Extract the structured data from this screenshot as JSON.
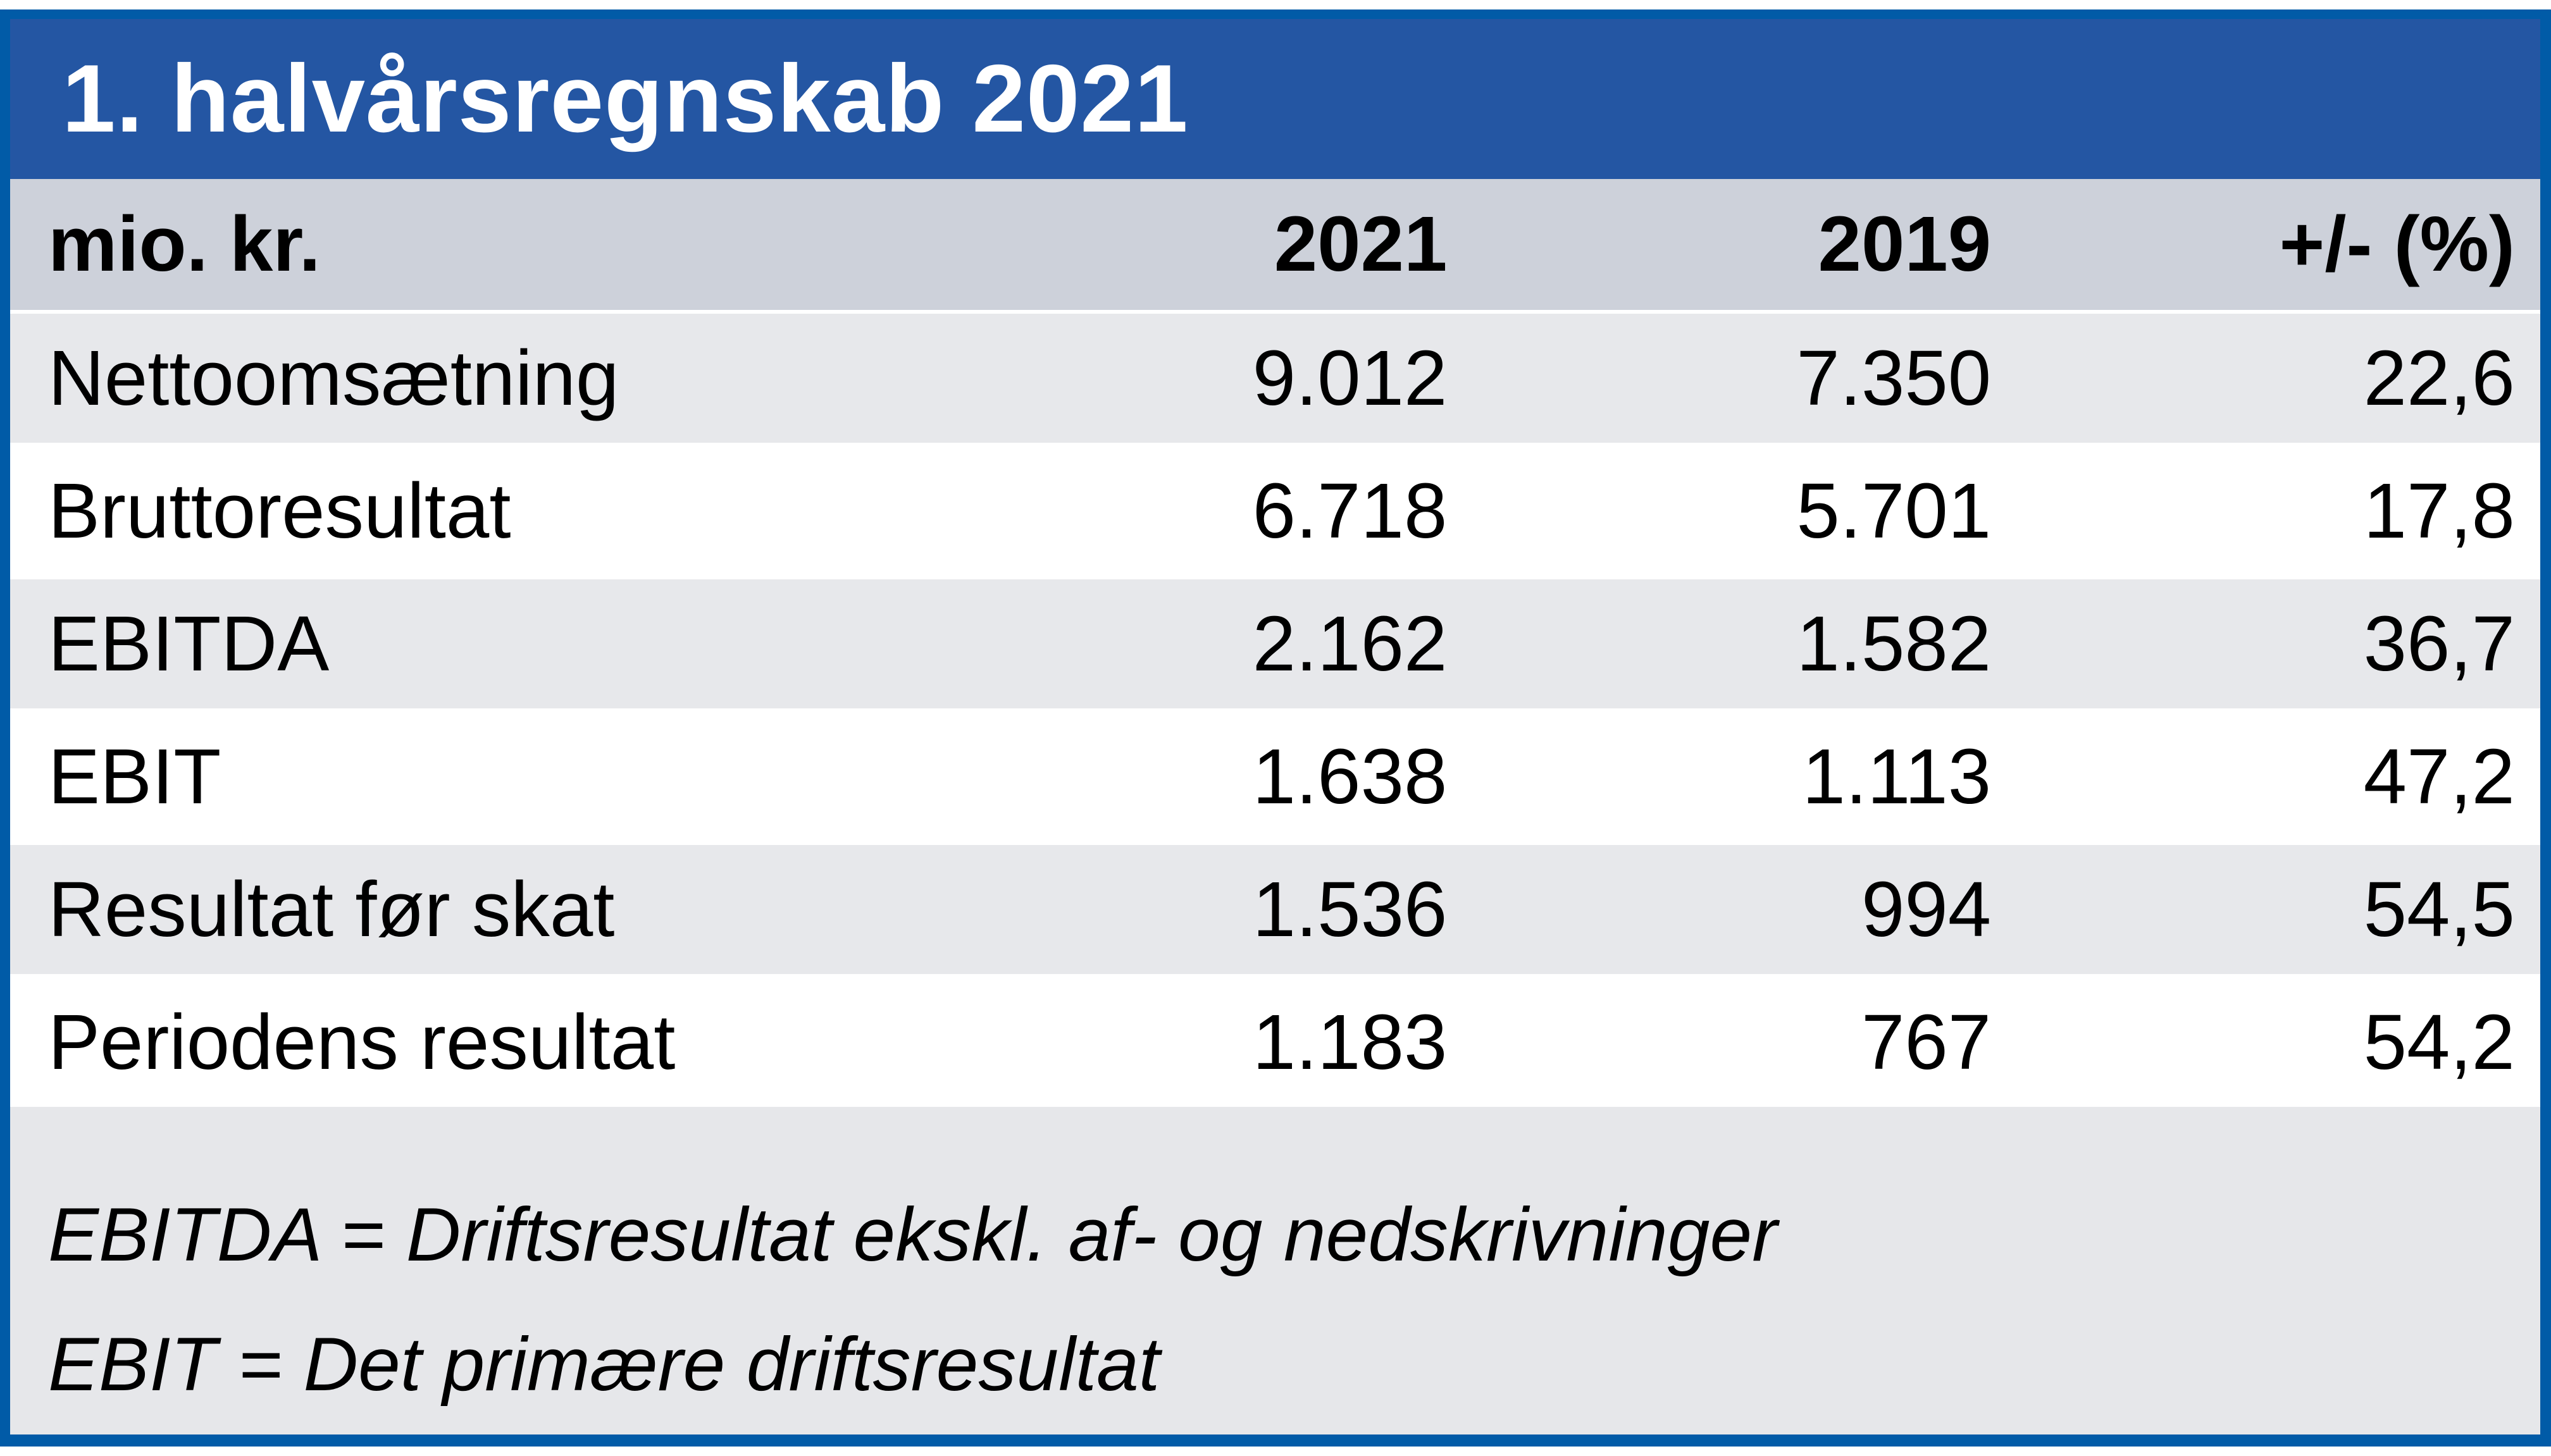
{
  "title": "1. halvårsregnskab 2021",
  "table": {
    "columns": [
      "mio. kr.",
      "2021",
      "2019",
      "+/- (%)"
    ],
    "rows": [
      [
        "Nettoomsætning",
        "9.012",
        "7.350",
        "22,6"
      ],
      [
        "Bruttoresultat",
        "6.718",
        "5.701",
        "17,8"
      ],
      [
        "EBITDA",
        "2.162",
        "1.582",
        "36,7"
      ],
      [
        "EBIT",
        "1.638",
        "1.113",
        "47,2"
      ],
      [
        "Resultat før skat",
        "1.536",
        "994",
        "54,5"
      ],
      [
        "Periodens resultat",
        "1.183",
        "767",
        "54,2"
      ]
    ]
  },
  "footnotes": [
    "EBITDA = Driftsresultat ekskl. af- og nedskrivninger",
    "EBIT = Det primære driftsresultat"
  ],
  "colors": {
    "frame_blue": "#015BA7",
    "title_blue": "#2456A3",
    "header_gray": "#CDD1DA",
    "row_gray": "#E7E8EB",
    "footer_gray": "#E6E7EA",
    "text": "#000000",
    "title_text": "#FFFFFF"
  },
  "chart_data": {
    "type": "table",
    "title": "1. halvårsregnskab 2021",
    "unit": "mio. kr.",
    "columns": [
      "mio. kr.",
      "2021",
      "2019",
      "+/- (%)"
    ],
    "rows": [
      {
        "label": "Nettoomsætning",
        "y2021": 9012,
        "y2019": 7350,
        "change_pct": 22.6
      },
      {
        "label": "Bruttoresultat",
        "y2021": 6718,
        "y2019": 5701,
        "change_pct": 17.8
      },
      {
        "label": "EBITDA",
        "y2021": 2162,
        "y2019": 1582,
        "change_pct": 36.7
      },
      {
        "label": "EBIT",
        "y2021": 1638,
        "y2019": 1113,
        "change_pct": 47.2
      },
      {
        "label": "Resultat før skat",
        "y2021": 1536,
        "y2019": 994,
        "change_pct": 54.5
      },
      {
        "label": "Periodens resultat",
        "y2021": 1183,
        "y2019": 767,
        "change_pct": 54.2
      }
    ],
    "notes": [
      "EBITDA = Driftsresultat ekskl. af- og nedskrivninger",
      "EBIT = Det primære driftsresultat"
    ],
    "number_format": "da-DK (period = thousands separator, comma = decimal separator)"
  }
}
